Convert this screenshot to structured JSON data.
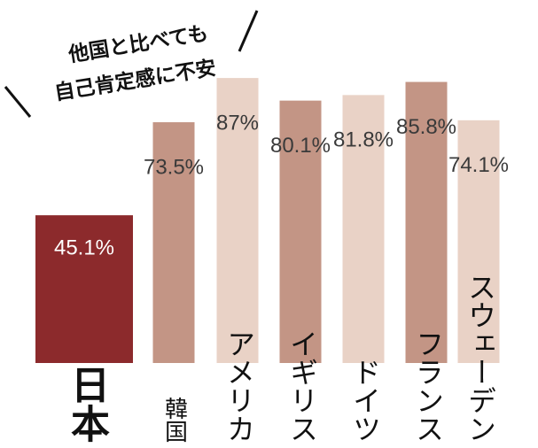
{
  "chart_data": {
    "type": "bar",
    "title": [
      "他国と比べても",
      "自己肯定感に不安"
    ],
    "categories": [
      "日本",
      "韓国",
      "アメリカ",
      "イギリス",
      "ドイツ",
      "フランス",
      "スウェーデン"
    ],
    "values": [
      45.1,
      73.5,
      87,
      80.1,
      81.8,
      85.8,
      74.1
    ],
    "value_labels": [
      "45.1%",
      "73.5%",
      "87%",
      "80.1%",
      "81.8%",
      "85.8%",
      "74.1%"
    ],
    "colors": [
      "#8c2a2c",
      "#c39585",
      "#e9d2c6",
      "#c39585",
      "#e9d2c6",
      "#c39585",
      "#e9d2c6"
    ],
    "ylim": [
      0,
      100
    ]
  }
}
